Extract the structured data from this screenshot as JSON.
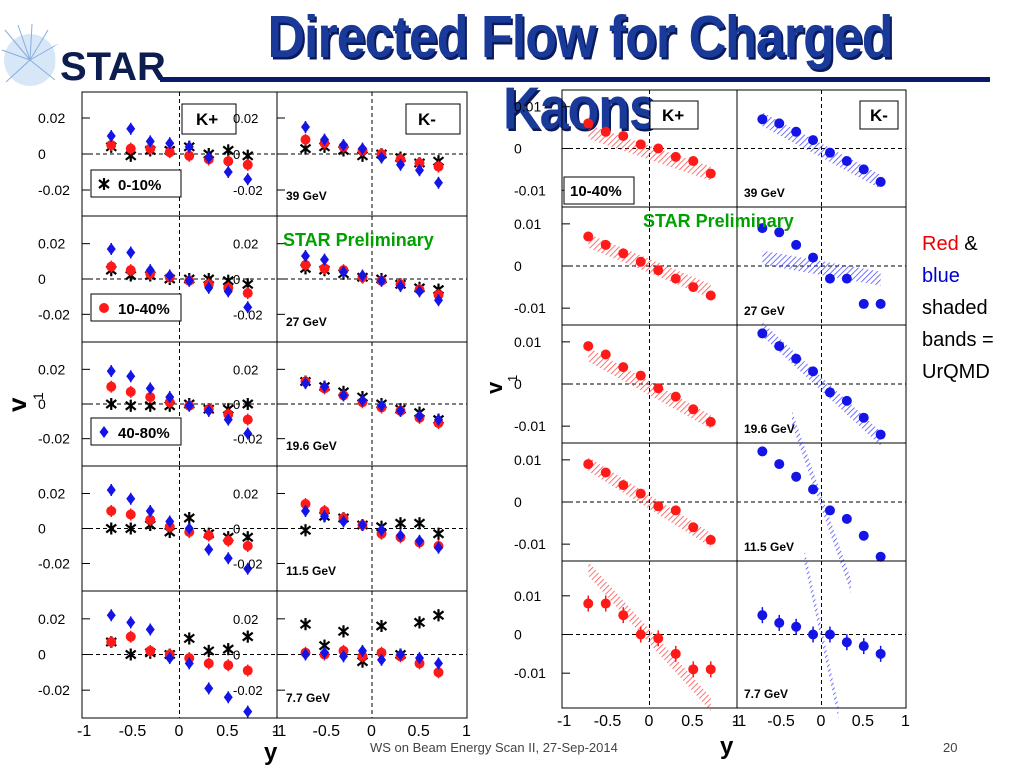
{
  "slide": {
    "title": "Directed Flow for Charged Kaons",
    "logo_text": "STAR",
    "footer": "WS on Beam Energy Scan II, 27-Sep-2014",
    "page_number": "20",
    "note": {
      "red": "Red",
      "amp": "&",
      "blue": "blue",
      "rest": [
        "shaded",
        "bands =",
        "UrQMD"
      ]
    },
    "preliminary": "STAR Preliminary"
  },
  "colors": {
    "title": "#1a3a9a",
    "red": "#ff1a1a",
    "blue": "#1414e6",
    "black": "#000000",
    "prelim": "#00a000",
    "redband": "#ff3030",
    "blueband": "#3030ff"
  },
  "chart_data": [
    {
      "type": "scatter",
      "panel": "left",
      "xlabel": "y",
      "ylabel": "v1",
      "xlim": [
        -1,
        1
      ],
      "ylim": [
        -0.03,
        0.03
      ],
      "x_ticks": [
        "-1",
        "-0.5",
        "0",
        "0.5",
        "1"
      ],
      "y_ticks": [
        "0.02",
        "0",
        "-0.02"
      ],
      "columns": [
        "K+",
        "K-"
      ],
      "legend": [
        {
          "series": "0-10%",
          "color": "black",
          "marker": "star"
        },
        {
          "series": "10-40%",
          "color": "red",
          "marker": "circle"
        },
        {
          "series": "40-80%",
          "color": "blue",
          "marker": "diamond"
        }
      ],
      "energies": [
        "39 GeV",
        "27 GeV",
        "19.6 GeV",
        "11.5 GeV",
        "7.7 GeV"
      ],
      "x": [
        -0.7,
        -0.5,
        -0.3,
        -0.1,
        0.1,
        0.3,
        0.5,
        0.7
      ],
      "rows": [
        {
          "energy": "39 GeV",
          "kplus": {
            "0-10%": [
              0.004,
              -0.001,
              0.002,
              0.002,
              0.004,
              0.0,
              0.002,
              -0.001
            ],
            "10-40%": [
              0.005,
              0.003,
              0.003,
              0.001,
              -0.001,
              -0.003,
              -0.004,
              -0.006
            ],
            "40-80%": [
              0.01,
              0.014,
              0.007,
              0.006,
              0.004,
              -0.002,
              -0.01,
              -0.014
            ]
          },
          "kminus": {
            "0-10%": [
              0.003,
              0.004,
              0.002,
              -0.001,
              0.0,
              -0.002,
              -0.005,
              -0.004
            ],
            "10-40%": [
              0.008,
              0.006,
              0.004,
              0.002,
              0.0,
              -0.003,
              -0.005,
              -0.007
            ],
            "40-80%": [
              0.015,
              0.008,
              0.005,
              0.003,
              -0.002,
              -0.006,
              -0.009,
              -0.016
            ]
          }
        },
        {
          "energy": "27 GeV",
          "kplus": {
            "0-10%": [
              0.005,
              0.002,
              0.002,
              0.0,
              0.0,
              0.0,
              -0.001,
              -0.003
            ],
            "10-40%": [
              0.007,
              0.005,
              0.003,
              0.001,
              -0.001,
              -0.003,
              -0.005,
              -0.008
            ],
            "40-80%": [
              0.017,
              0.015,
              0.005,
              0.002,
              -0.001,
              -0.005,
              -0.007,
              -0.016
            ]
          },
          "kminus": {
            "0-10%": [
              0.006,
              0.005,
              0.003,
              0.001,
              0.0,
              -0.003,
              -0.005,
              -0.006
            ],
            "10-40%": [
              0.008,
              0.006,
              0.005,
              0.001,
              -0.001,
              -0.003,
              -0.006,
              -0.009
            ],
            "40-80%": [
              0.013,
              0.011,
              0.004,
              0.002,
              -0.001,
              -0.004,
              -0.007,
              -0.012
            ]
          }
        },
        {
          "energy": "19.6 GeV",
          "kplus": {
            "0-10%": [
              0.0,
              -0.001,
              -0.001,
              -0.001,
              0.0,
              -0.003,
              -0.003,
              0.0
            ],
            "10-40%": [
              0.01,
              0.007,
              0.004,
              0.001,
              -0.001,
              -0.003,
              -0.006,
              -0.009
            ],
            "40-80%": [
              0.019,
              0.016,
              0.009,
              0.004,
              -0.001,
              -0.004,
              -0.009,
              -0.017
            ]
          },
          "kminus": {
            "0-10%": [
              0.013,
              0.01,
              0.007,
              0.004,
              0.0,
              -0.003,
              -0.005,
              -0.009
            ],
            "10-40%": [
              0.013,
              0.009,
              0.005,
              0.001,
              -0.002,
              -0.004,
              -0.008,
              -0.011
            ],
            "40-80%": [
              0.012,
              0.01,
              0.005,
              0.002,
              -0.001,
              -0.004,
              -0.007,
              -0.009
            ]
          }
        },
        {
          "energy": "11.5 GeV",
          "kplus": {
            "0-10%": [
              0.0,
              0.0,
              0.002,
              -0.002,
              0.006,
              -0.003,
              -0.005,
              -0.005
            ],
            "10-40%": [
              0.01,
              0.008,
              0.005,
              0.001,
              -0.002,
              -0.004,
              -0.007,
              -0.01
            ],
            "40-80%": [
              0.022,
              0.017,
              0.01,
              0.004,
              0.0,
              -0.012,
              -0.017,
              -0.023
            ]
          },
          "kminus": {
            "0-10%": [
              -0.001,
              0.007,
              0.006,
              0.002,
              0.001,
              0.003,
              0.003,
              -0.003
            ],
            "10-40%": [
              0.014,
              0.01,
              0.006,
              0.002,
              -0.003,
              -0.005,
              -0.008,
              -0.01
            ],
            "40-80%": [
              0.01,
              0.007,
              0.004,
              0.002,
              -0.001,
              -0.004,
              -0.007,
              -0.011
            ]
          }
        },
        {
          "energy": "7.7 GeV",
          "kplus": {
            "0-10%": [
              0.007,
              0.0,
              0.001,
              0.0,
              0.009,
              0.002,
              0.003,
              0.01
            ],
            "10-40%": [
              0.007,
              0.01,
              0.002,
              0.0,
              -0.002,
              -0.005,
              -0.006,
              -0.009
            ],
            "40-80%": [
              0.022,
              0.018,
              0.014,
              -0.002,
              -0.005,
              -0.019,
              -0.024,
              -0.032
            ]
          },
          "kminus": {
            "0-10%": [
              0.017,
              0.005,
              0.013,
              -0.004,
              0.016,
              0.0,
              0.018,
              0.022
            ],
            "10-40%": [
              0.001,
              0.0,
              0.002,
              -0.001,
              0.001,
              -0.001,
              -0.005,
              -0.01
            ],
            "40-80%": [
              0.0,
              0.001,
              -0.001,
              0.002,
              -0.003,
              0.0,
              -0.002,
              -0.005
            ]
          }
        }
      ]
    },
    {
      "type": "scatter",
      "panel": "right",
      "xlabel": "y",
      "ylabel": "v1",
      "xlim": [
        -1,
        1
      ],
      "x_ticks": [
        "-1",
        "-0.5",
        "0",
        "0.5",
        "1"
      ],
      "y_ticks": [
        "0.01",
        "0",
        "-0.01"
      ],
      "columns": [
        "K+",
        "K-"
      ],
      "legend": [
        {
          "series": "10-40%",
          "color": "red",
          "marker": "circle"
        }
      ],
      "energies": [
        "39 GeV",
        "27 GeV",
        "19.6 GeV",
        "11.5 GeV",
        "7.7 GeV"
      ],
      "x": [
        -0.7,
        -0.5,
        -0.3,
        -0.1,
        0.1,
        0.3,
        0.5,
        0.7
      ],
      "rows": [
        {
          "energy": "39 GeV",
          "ylim": [
            -0.014,
            0.014
          ],
          "kplus": [
            0.006,
            0.004,
            0.003,
            0.001,
            0.0,
            -0.002,
            -0.003,
            -0.006
          ],
          "kminus": [
            0.007,
            0.006,
            0.004,
            0.002,
            -0.001,
            -0.003,
            -0.005,
            -0.008
          ],
          "kplus_band": [
            [
              -0.7,
              0.004
            ],
            [
              0.7,
              -0.006
            ]
          ],
          "kminus_band": [
            [
              -0.7,
              0.007
            ],
            [
              0.7,
              -0.008
            ]
          ]
        },
        {
          "energy": "27 GeV",
          "ylim": [
            -0.014,
            0.014
          ],
          "kplus": [
            0.007,
            0.005,
            0.003,
            0.001,
            -0.001,
            -0.003,
            -0.005,
            -0.007
          ],
          "kminus": [
            0.009,
            0.008,
            0.005,
            0.002,
            -0.003,
            -0.003,
            -0.009,
            -0.009
          ],
          "kplus_band": [
            [
              -0.7,
              0.006
            ],
            [
              0.7,
              -0.006
            ]
          ],
          "kminus_band": [
            [
              -0.7,
              0.002
            ],
            [
              0.7,
              -0.003
            ]
          ]
        },
        {
          "energy": "19.6 GeV",
          "ylim": [
            -0.014,
            0.014
          ],
          "kplus": [
            0.009,
            0.007,
            0.004,
            0.002,
            -0.001,
            -0.003,
            -0.006,
            -0.009
          ],
          "kminus": [
            0.012,
            0.009,
            0.006,
            0.003,
            -0.002,
            -0.004,
            -0.008,
            -0.012
          ],
          "kplus_band": [
            [
              -0.7,
              0.007
            ],
            [
              0.7,
              -0.009
            ]
          ],
          "kminus_band": [
            [
              -0.7,
              0.013
            ],
            [
              0.7,
              -0.013
            ]
          ]
        },
        {
          "energy": "11.5 GeV",
          "ylim": [
            -0.014,
            0.014
          ],
          "kplus": [
            0.009,
            0.007,
            0.004,
            0.002,
            -0.001,
            -0.002,
            -0.006,
            -0.009
          ],
          "kminus": [
            0.012,
            0.009,
            0.006,
            0.003,
            -0.002,
            -0.004,
            -0.008,
            -0.013
          ],
          "kplus_band": [
            [
              -0.7,
              0.009
            ],
            [
              0.7,
              -0.009
            ]
          ],
          "kminus_band": [
            [
              -0.35,
              0.02
            ],
            [
              0.35,
              -0.02
            ]
          ]
        },
        {
          "energy": "7.7 GeV",
          "ylim": [
            -0.019,
            0.019
          ],
          "kplus": [
            0.008,
            0.008,
            0.005,
            0.0,
            -0.001,
            -0.005,
            -0.009,
            -0.009
          ],
          "kminus": [
            0.005,
            0.003,
            0.002,
            0.0,
            0.0,
            -0.002,
            -0.003,
            -0.005
          ],
          "kplus_band": [
            [
              -0.7,
              0.017
            ],
            [
              0.7,
              -0.018
            ]
          ],
          "kminus_band": [
            [
              -0.2,
              0.02
            ],
            [
              0.2,
              -0.02
            ]
          ]
        }
      ]
    }
  ]
}
